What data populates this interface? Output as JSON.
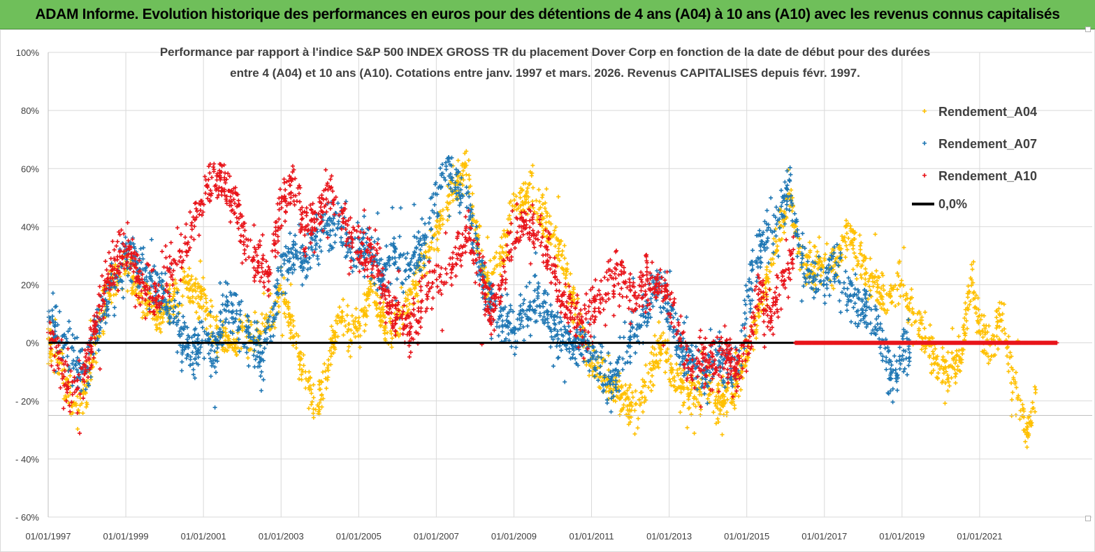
{
  "banner": {
    "title": "ADAM Informe. Evolution historique des performances en euros pour des détentions de 4 ans (A04) à 10 ans (A10) avec les revenus connus capitalisés"
  },
  "colors": {
    "banner_bg": "#6fbf5a",
    "a04": "#ffc000",
    "a07": "#1f77b4",
    "a10": "#e8141a",
    "zero_line": "#000000"
  },
  "chart_data": {
    "type": "scatter",
    "title_lines": [
      "Performance par rapport à l'indice S&P 500 INDEX GROSS TR  du placement Dover Corp en fonction de la date de début pour des durées",
      "entre 4 (A04) et 10 ans (A10). Cotations entre janv. 1997 et mars. 2026. Revenus CAPITALISES depuis févr. 1997."
    ],
    "xlabel": "",
    "ylabel": "",
    "x_range": [
      1997.0,
      2023.0
    ],
    "ylim": [
      -60,
      100
    ],
    "x_ticks": [
      {
        "year": 1997,
        "label": "01/01/1997"
      },
      {
        "year": 1999,
        "label": "01/01/1999"
      },
      {
        "year": 2001,
        "label": "01/01/2001"
      },
      {
        "year": 2003,
        "label": "01/01/2003"
      },
      {
        "year": 2005,
        "label": "01/01/2005"
      },
      {
        "year": 2007,
        "label": "01/01/2007"
      },
      {
        "year": 2009,
        "label": "01/01/2009"
      },
      {
        "year": 2011,
        "label": "01/01/2011"
      },
      {
        "year": 2013,
        "label": "01/01/2013"
      },
      {
        "year": 2015,
        "label": "01/01/2015"
      },
      {
        "year": 2017,
        "label": "01/01/2017"
      },
      {
        "year": 2019,
        "label": "01/01/2019"
      },
      {
        "year": 2021,
        "label": "01/01/2021"
      }
    ],
    "y_ticks": [
      {
        "value": 100,
        "label": "100%"
      },
      {
        "value": 80,
        "label": "80%"
      },
      {
        "value": 60,
        "label": "60%"
      },
      {
        "value": 40,
        "label": "40%"
      },
      {
        "value": 20,
        "label": "20%"
      },
      {
        "value": 0,
        "label": "0%"
      },
      {
        "value": -20,
        "label": "- 20%"
      },
      {
        "value": -40,
        "label": "- 40%"
      },
      {
        "value": -60,
        "label": "- 60%"
      }
    ],
    "reference_line": {
      "name": "0,0%",
      "y": 0
    },
    "legend_position": "top-right",
    "series": [
      {
        "name": "Rendement_A04",
        "color": "#ffc000",
        "x_end": 2022.45,
        "spread": 5,
        "path": [
          [
            1997.0,
            2
          ],
          [
            1997.4,
            -12
          ],
          [
            1997.7,
            -22
          ],
          [
            1998.0,
            -15
          ],
          [
            1998.3,
            5
          ],
          [
            1998.7,
            22
          ],
          [
            1999.0,
            28
          ],
          [
            1999.5,
            15
          ],
          [
            2000.0,
            10
          ],
          [
            2000.5,
            20
          ],
          [
            2001.0,
            15
          ],
          [
            2001.3,
            3
          ],
          [
            2001.7,
            -2
          ],
          [
            2002.0,
            5
          ],
          [
            2002.4,
            2
          ],
          [
            2002.8,
            12
          ],
          [
            2003.0,
            18
          ],
          [
            2003.3,
            5
          ],
          [
            2003.6,
            -12
          ],
          [
            2003.9,
            -25
          ],
          [
            2004.2,
            -8
          ],
          [
            2004.5,
            10
          ],
          [
            2004.8,
            2
          ],
          [
            2005.0,
            5
          ],
          [
            2005.3,
            18
          ],
          [
            2005.6,
            8
          ],
          [
            2005.9,
            5
          ],
          [
            2006.2,
            12
          ],
          [
            2006.6,
            25
          ],
          [
            2006.9,
            35
          ],
          [
            2007.2,
            45
          ],
          [
            2007.5,
            55
          ],
          [
            2007.8,
            60
          ],
          [
            2008.0,
            40
          ],
          [
            2008.3,
            20
          ],
          [
            2008.7,
            30
          ],
          [
            2009.0,
            48
          ],
          [
            2009.4,
            52
          ],
          [
            2009.7,
            45
          ],
          [
            2010.0,
            35
          ],
          [
            2010.3,
            28
          ],
          [
            2010.6,
            10
          ],
          [
            2010.9,
            -5
          ],
          [
            2011.2,
            -10
          ],
          [
            2011.6,
            -15
          ],
          [
            2011.9,
            -20
          ],
          [
            2012.2,
            -22
          ],
          [
            2012.5,
            -10
          ],
          [
            2012.8,
            0
          ],
          [
            2013.0,
            -8
          ],
          [
            2013.3,
            -15
          ],
          [
            2013.7,
            -18
          ],
          [
            2014.0,
            -12
          ],
          [
            2014.3,
            -22
          ],
          [
            2014.7,
            -15
          ],
          [
            2015.0,
            -5
          ],
          [
            2015.3,
            10
          ],
          [
            2015.6,
            25
          ],
          [
            2015.9,
            42
          ],
          [
            2016.1,
            50
          ],
          [
            2016.4,
            30
          ],
          [
            2016.7,
            25
          ],
          [
            2017.0,
            30
          ],
          [
            2017.3,
            28
          ],
          [
            2017.6,
            38
          ],
          [
            2017.9,
            30
          ],
          [
            2018.2,
            22
          ],
          [
            2018.6,
            15
          ],
          [
            2019.0,
            20
          ],
          [
            2019.3,
            8
          ],
          [
            2019.6,
            0
          ],
          [
            2019.9,
            -8
          ],
          [
            2020.2,
            -12
          ],
          [
            2020.5,
            -5
          ],
          [
            2020.8,
            22
          ],
          [
            2021.0,
            5
          ],
          [
            2021.3,
            0
          ],
          [
            2021.6,
            8
          ],
          [
            2021.8,
            -10
          ],
          [
            2022.0,
            -18
          ],
          [
            2022.2,
            -30
          ],
          [
            2022.45,
            -18
          ]
        ]
      },
      {
        "name": "Rendement_A07",
        "color": "#1f77b4",
        "x_end": 2019.2,
        "spread": 6,
        "path": [
          [
            1997.0,
            10
          ],
          [
            1997.3,
            2
          ],
          [
            1997.6,
            -5
          ],
          [
            1998.0,
            -10
          ],
          [
            1998.3,
            8
          ],
          [
            1998.7,
            20
          ],
          [
            1999.0,
            30
          ],
          [
            1999.5,
            22
          ],
          [
            2000.0,
            15
          ],
          [
            2000.3,
            8
          ],
          [
            2000.7,
            -5
          ],
          [
            2001.0,
            2
          ],
          [
            2001.3,
            -3
          ],
          [
            2001.6,
            15
          ],
          [
            2001.9,
            8
          ],
          [
            2002.2,
            2
          ],
          [
            2002.5,
            -8
          ],
          [
            2002.8,
            10
          ],
          [
            2003.0,
            25
          ],
          [
            2003.3,
            32
          ],
          [
            2003.6,
            28
          ],
          [
            2003.9,
            38
          ],
          [
            2004.2,
            40
          ],
          [
            2004.5,
            42
          ],
          [
            2004.8,
            30
          ],
          [
            2005.0,
            35
          ],
          [
            2005.3,
            32
          ],
          [
            2005.6,
            22
          ],
          [
            2005.9,
            30
          ],
          [
            2006.2,
            25
          ],
          [
            2006.6,
            30
          ],
          [
            2006.9,
            45
          ],
          [
            2007.2,
            60
          ],
          [
            2007.5,
            55
          ],
          [
            2007.8,
            50
          ],
          [
            2008.0,
            35
          ],
          [
            2008.3,
            15
          ],
          [
            2008.6,
            10
          ],
          [
            2009.0,
            5
          ],
          [
            2009.3,
            10
          ],
          [
            2009.6,
            15
          ],
          [
            2009.9,
            8
          ],
          [
            2010.2,
            2
          ],
          [
            2010.5,
            -2
          ],
          [
            2010.9,
            0
          ],
          [
            2011.2,
            -8
          ],
          [
            2011.6,
            -15
          ],
          [
            2011.9,
            0
          ],
          [
            2012.2,
            5
          ],
          [
            2012.5,
            15
          ],
          [
            2012.8,
            20
          ],
          [
            2013.0,
            10
          ],
          [
            2013.3,
            -3
          ],
          [
            2013.6,
            -5
          ],
          [
            2013.9,
            -10
          ],
          [
            2014.2,
            -5
          ],
          [
            2014.5,
            -8
          ],
          [
            2014.8,
            -5
          ],
          [
            2015.0,
            15
          ],
          [
            2015.3,
            32
          ],
          [
            2015.6,
            38
          ],
          [
            2015.9,
            45
          ],
          [
            2016.1,
            55
          ],
          [
            2016.4,
            30
          ],
          [
            2016.7,
            22
          ],
          [
            2017.0,
            20
          ],
          [
            2017.3,
            28
          ],
          [
            2017.6,
            18
          ],
          [
            2017.9,
            12
          ],
          [
            2018.2,
            8
          ],
          [
            2018.5,
            0
          ],
          [
            2018.8,
            -15
          ],
          [
            2019.0,
            -5
          ],
          [
            2019.2,
            -2
          ]
        ]
      },
      {
        "name": "Rendement_A10",
        "color": "#e8141a",
        "x_end": 2016.2,
        "spread": 6,
        "path": [
          [
            1997.0,
            5
          ],
          [
            1997.3,
            -8
          ],
          [
            1997.6,
            -15
          ],
          [
            1997.9,
            -12
          ],
          [
            1998.2,
            5
          ],
          [
            1998.5,
            22
          ],
          [
            1998.8,
            28
          ],
          [
            1999.1,
            32
          ],
          [
            1999.4,
            20
          ],
          [
            1999.7,
            15
          ],
          [
            2000.0,
            22
          ],
          [
            2000.3,
            28
          ],
          [
            2000.6,
            35
          ],
          [
            2000.9,
            45
          ],
          [
            2001.2,
            58
          ],
          [
            2001.5,
            55
          ],
          [
            2001.8,
            48
          ],
          [
            2002.1,
            35
          ],
          [
            2002.4,
            28
          ],
          [
            2002.7,
            22
          ],
          [
            2003.0,
            48
          ],
          [
            2003.3,
            55
          ],
          [
            2003.6,
            40
          ],
          [
            2003.9,
            42
          ],
          [
            2004.2,
            52
          ],
          [
            2004.5,
            48
          ],
          [
            2004.8,
            35
          ],
          [
            2005.1,
            30
          ],
          [
            2005.4,
            32
          ],
          [
            2005.7,
            15
          ],
          [
            2006.0,
            10
          ],
          [
            2006.3,
            5
          ],
          [
            2006.6,
            12
          ],
          [
            2006.9,
            20
          ],
          [
            2007.2,
            22
          ],
          [
            2007.5,
            28
          ],
          [
            2007.8,
            40
          ],
          [
            2008.1,
            25
          ],
          [
            2008.4,
            10
          ],
          [
            2008.7,
            22
          ],
          [
            2009.0,
            38
          ],
          [
            2009.3,
            40
          ],
          [
            2009.6,
            38
          ],
          [
            2009.9,
            30
          ],
          [
            2010.2,
            15
          ],
          [
            2010.5,
            10
          ],
          [
            2010.8,
            5
          ],
          [
            2011.1,
            12
          ],
          [
            2011.4,
            20
          ],
          [
            2011.7,
            25
          ],
          [
            2012.0,
            15
          ],
          [
            2012.3,
            18
          ],
          [
            2012.6,
            22
          ],
          [
            2012.9,
            18
          ],
          [
            2013.2,
            8
          ],
          [
            2013.5,
            -10
          ],
          [
            2013.8,
            -5
          ],
          [
            2014.1,
            -8
          ],
          [
            2014.4,
            -3
          ],
          [
            2014.7,
            -10
          ],
          [
            2015.0,
            0
          ],
          [
            2015.3,
            15
          ],
          [
            2015.6,
            10
          ],
          [
            2015.9,
            20
          ],
          [
            2016.2,
            30
          ]
        ]
      }
    ],
    "zero_points": {
      "name": "Rendement_A10",
      "x_start": 2016.25,
      "x_end": 2023.0,
      "value": 0
    }
  }
}
